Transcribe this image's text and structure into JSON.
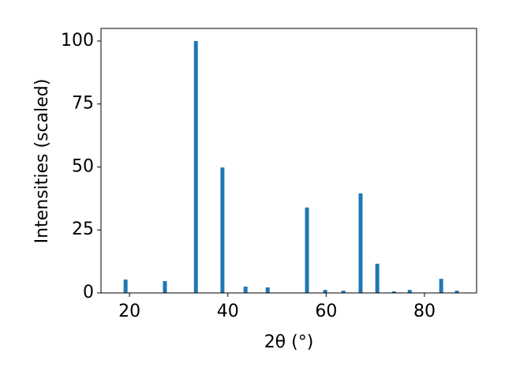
{
  "chart_data": {
    "type": "bar",
    "x": [
      19.2,
      27.2,
      33.5,
      38.9,
      43.6,
      48.1,
      56.1,
      59.8,
      63.5,
      67.0,
      70.4,
      73.8,
      77.0,
      83.4,
      86.6
    ],
    "values": [
      5.3,
      4.7,
      100,
      49.8,
      2.5,
      2.2,
      33.9,
      1.2,
      0.9,
      39.5,
      11.6,
      0.6,
      1.2,
      5.6,
      0.9
    ],
    "bar_width": 0.8,
    "color": "#1f77b4",
    "xlabel": "2θ (°)",
    "ylabel": "Intensities (scaled)",
    "xlim": [
      14.2,
      90.6
    ],
    "xticks": [
      20,
      40,
      60,
      80
    ],
    "ylim": [
      0,
      105
    ],
    "yticks": [
      0,
      25,
      50,
      75,
      100
    ]
  }
}
